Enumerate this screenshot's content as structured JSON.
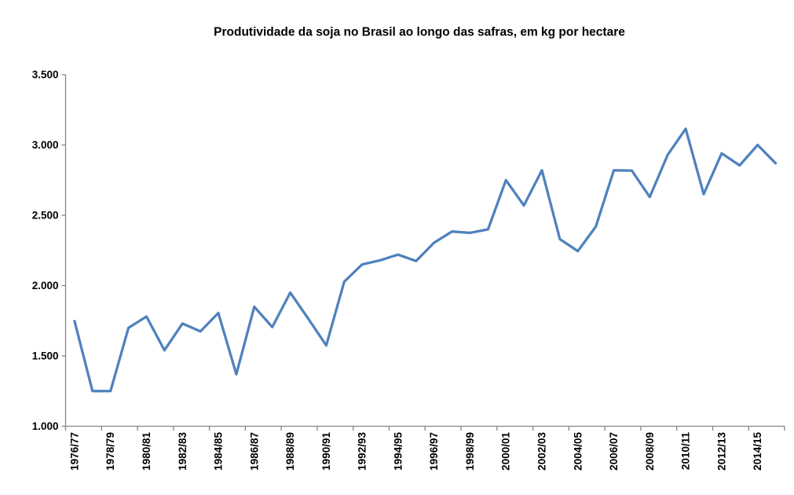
{
  "title": "Produtividade da soja no Brasil ao longo das safras, em kg por hectare",
  "colors": {
    "line": "#4F81BD",
    "axis": "#868686",
    "text": "#000000",
    "background": "#FFFFFF"
  },
  "chart_data": {
    "type": "line",
    "title": "Produtividade da soja no Brasil ao longo das safras, em kg por hectare",
    "xlabel": "",
    "ylabel": "",
    "unit": "kg por hectare",
    "grid": false,
    "legend": "none",
    "ylim": [
      1000,
      3500
    ],
    "y_ticks": [
      1000,
      1500,
      2000,
      2500,
      3000,
      3500
    ],
    "y_tick_labels": [
      "1.000",
      "1.500",
      "2.000",
      "2.500",
      "3.000",
      "3.500"
    ],
    "x_tick_labels": [
      "1976/77",
      "1978/79",
      "1980/81",
      "1982/83",
      "1984/85",
      "1986/87",
      "1988/89",
      "1990/91",
      "1992/93",
      "1994/95",
      "1996/97",
      "1998/99",
      "2000/01",
      "2002/03",
      "2004/05",
      "2006/07",
      "2008/09",
      "2010/11",
      "2012/13",
      "2014/15"
    ],
    "x": [
      "1976/77",
      "1977/78",
      "1978/79",
      "1979/80",
      "1980/81",
      "1981/82",
      "1982/83",
      "1983/84",
      "1984/85",
      "1985/86",
      "1986/87",
      "1987/88",
      "1988/89",
      "1989/90",
      "1990/91",
      "1991/92",
      "1992/93",
      "1993/94",
      "1994/95",
      "1995/96",
      "1996/97",
      "1997/98",
      "1998/99",
      "1999/00",
      "2000/01",
      "2001/02",
      "2002/03",
      "2003/04",
      "2004/05",
      "2005/06",
      "2006/07",
      "2007/08",
      "2008/09",
      "2009/10",
      "2010/11",
      "2011/12",
      "2012/13",
      "2013/14",
      "2014/15",
      "2015/16"
    ],
    "values": [
      1748,
      1250,
      1250,
      1700,
      1780,
      1540,
      1730,
      1675,
      1805,
      1370,
      1850,
      1705,
      1950,
      1765,
      1575,
      2028,
      2150,
      2180,
      2220,
      2175,
      2305,
      2385,
      2375,
      2400,
      2750,
      2570,
      2820,
      2330,
      2245,
      2420,
      2820,
      2818,
      2630,
      2930,
      3115,
      2650,
      2940,
      2855,
      3000,
      2870
    ]
  }
}
